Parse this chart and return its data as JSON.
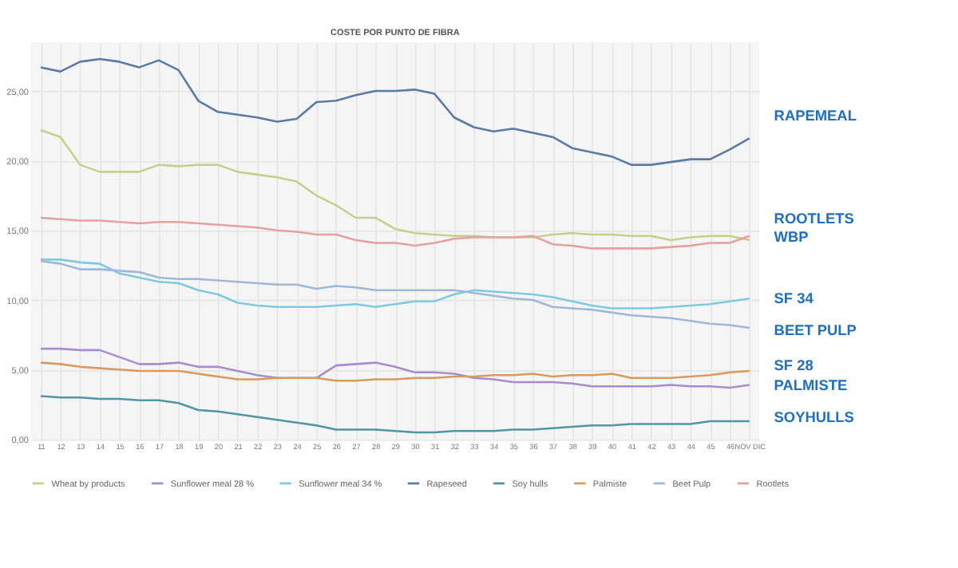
{
  "chart_data": {
    "type": "line",
    "title": "COSTE POR PUNTO DE FIBRA",
    "categories": [
      "11",
      "12",
      "13",
      "14",
      "15",
      "16",
      "17",
      "18",
      "19",
      "20",
      "21",
      "22",
      "23",
      "24",
      "25",
      "26",
      "27",
      "28",
      "29",
      "30",
      "31",
      "32",
      "33",
      "34",
      "35",
      "36",
      "37",
      "38",
      "39",
      "40",
      "41",
      "42",
      "43",
      "44",
      "45",
      "46",
      "NOV DIC"
    ],
    "series": [
      {
        "name": "Wheat by products",
        "color": "#c5d08a",
        "values": [
          22.2,
          21.7,
          19.7,
          19.2,
          19.2,
          19.2,
          19.7,
          19.6,
          19.7,
          19.7,
          19.2,
          19.0,
          18.8,
          18.5,
          17.5,
          16.8,
          15.9,
          15.9,
          15.1,
          14.8,
          14.7,
          14.6,
          14.6,
          14.5,
          14.5,
          14.5,
          14.7,
          14.8,
          14.7,
          14.7,
          14.6,
          14.6,
          14.3,
          14.5,
          14.6,
          14.6,
          14.3
        ]
      },
      {
        "name": "Sunflower meal 28 %",
        "color": "#a98ccc",
        "values": [
          6.5,
          6.5,
          6.4,
          6.4,
          5.9,
          5.4,
          5.4,
          5.5,
          5.2,
          5.2,
          4.9,
          4.6,
          4.4,
          4.4,
          4.4,
          5.3,
          5.4,
          5.5,
          5.2,
          4.8,
          4.8,
          4.7,
          4.4,
          4.3,
          4.1,
          4.1,
          4.1,
          4.0,
          3.8,
          3.8,
          3.8,
          3.8,
          3.9,
          3.8,
          3.8,
          3.7,
          3.9
        ]
      },
      {
        "name": "Sunflower meal 34 %",
        "color": "#7ccbe0",
        "values": [
          12.9,
          12.9,
          12.7,
          12.6,
          11.9,
          11.6,
          11.3,
          11.2,
          10.7,
          10.4,
          9.8,
          9.6,
          9.5,
          9.5,
          9.5,
          9.6,
          9.7,
          9.5,
          9.7,
          9.9,
          9.9,
          10.4,
          10.7,
          10.6,
          10.5,
          10.4,
          10.2,
          9.9,
          9.6,
          9.4,
          9.4,
          9.4,
          9.5,
          9.6,
          9.7,
          9.9,
          10.1
        ]
      },
      {
        "name": "Rapeseed",
        "color": "#5a7aa8",
        "values": [
          26.7,
          26.4,
          27.1,
          27.3,
          27.1,
          26.7,
          27.2,
          26.5,
          24.3,
          23.5,
          23.3,
          23.1,
          22.8,
          23.0,
          24.2,
          24.3,
          24.7,
          25.0,
          25.0,
          25.1,
          24.8,
          23.1,
          22.4,
          22.1,
          22.3,
          22.0,
          21.7,
          20.9,
          20.6,
          20.3,
          19.7,
          19.7,
          19.9,
          20.1,
          20.1,
          20.8,
          21.6
        ]
      },
      {
        "name": "Soy hulls",
        "color": "#4f97a3",
        "values": [
          3.1,
          3.0,
          3.0,
          2.9,
          2.9,
          2.8,
          2.8,
          2.6,
          2.1,
          2.0,
          1.8,
          1.6,
          1.4,
          1.2,
          1.0,
          0.7,
          0.7,
          0.7,
          0.6,
          0.5,
          0.5,
          0.6,
          0.6,
          0.6,
          0.7,
          0.7,
          0.8,
          0.9,
          1.0,
          1.0,
          1.1,
          1.1,
          1.1,
          1.1,
          1.3,
          1.3,
          1.3
        ]
      },
      {
        "name": "Palmiste",
        "color": "#d99a5e",
        "values": [
          5.5,
          5.4,
          5.2,
          5.1,
          5.0,
          4.9,
          4.9,
          4.9,
          4.7,
          4.5,
          4.3,
          4.3,
          4.4,
          4.4,
          4.4,
          4.2,
          4.2,
          4.3,
          4.3,
          4.4,
          4.4,
          4.5,
          4.5,
          4.6,
          4.6,
          4.7,
          4.5,
          4.6,
          4.6,
          4.7,
          4.4,
          4.4,
          4.4,
          4.5,
          4.6,
          4.8,
          4.9
        ]
      },
      {
        "name": "Beet Pulp",
        "color": "#9fb8d8",
        "values": [
          12.8,
          12.6,
          12.2,
          12.2,
          12.1,
          12.0,
          11.6,
          11.5,
          11.5,
          11.4,
          11.3,
          11.2,
          11.1,
          11.1,
          10.8,
          11.0,
          10.9,
          10.7,
          10.7,
          10.7,
          10.7,
          10.7,
          10.5,
          10.3,
          10.1,
          10.0,
          9.5,
          9.4,
          9.3,
          9.1,
          8.9,
          8.8,
          8.7,
          8.5,
          8.3,
          8.2,
          8.0
        ]
      },
      {
        "name": "Rootlets",
        "color": "#e5a0a0",
        "values": [
          15.9,
          15.8,
          15.7,
          15.7,
          15.6,
          15.5,
          15.6,
          15.6,
          15.5,
          15.4,
          15.3,
          15.2,
          15.0,
          14.9,
          14.7,
          14.7,
          14.3,
          14.1,
          14.1,
          13.9,
          14.1,
          14.4,
          14.5,
          14.5,
          14.5,
          14.6,
          14.0,
          13.9,
          13.7,
          13.7,
          13.7,
          13.7,
          13.8,
          13.9,
          14.1,
          14.1,
          14.6
        ]
      }
    ],
    "ylim": [
      0,
      28.5
    ],
    "yticks": [
      {
        "value": 0,
        "label": "0,00"
      },
      {
        "value": 5,
        "label": "5,00"
      },
      {
        "value": 10,
        "label": "10,00"
      },
      {
        "value": 15,
        "label": "15,00"
      },
      {
        "value": 20,
        "label": "20,00"
      },
      {
        "value": 25,
        "label": "25,00"
      }
    ],
    "annotations": [
      "RAPEMEAL",
      "ROOTLETS",
      "WBP",
      "SF 34",
      "BEET PULP",
      "SF 28",
      "PALMISTE",
      "SOYHULLS"
    ],
    "grid": true,
    "legend": "bottom",
    "marker": "none",
    "line_style": "solid"
  }
}
